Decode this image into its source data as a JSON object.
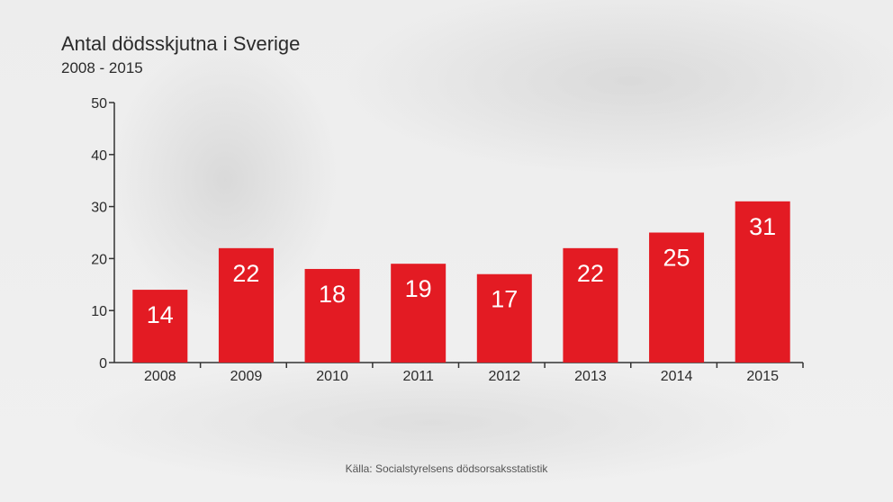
{
  "chart_data": {
    "type": "bar",
    "title": "Antal dödsskjutna i Sverige",
    "subtitle": "2008 - 2015",
    "categories": [
      "2008",
      "2009",
      "2010",
      "2011",
      "2012",
      "2013",
      "2014",
      "2015"
    ],
    "values": [
      14,
      22,
      18,
      19,
      17,
      22,
      25,
      31
    ],
    "ylim": [
      0,
      50
    ],
    "yticks": [
      "0",
      "10",
      "20",
      "30",
      "40",
      "50"
    ],
    "xlabel": "",
    "ylabel": "",
    "grid": false,
    "bar_color": "#e31b23",
    "source": "Källa: Socialstyrelsens dödsorsaksstatistik"
  }
}
